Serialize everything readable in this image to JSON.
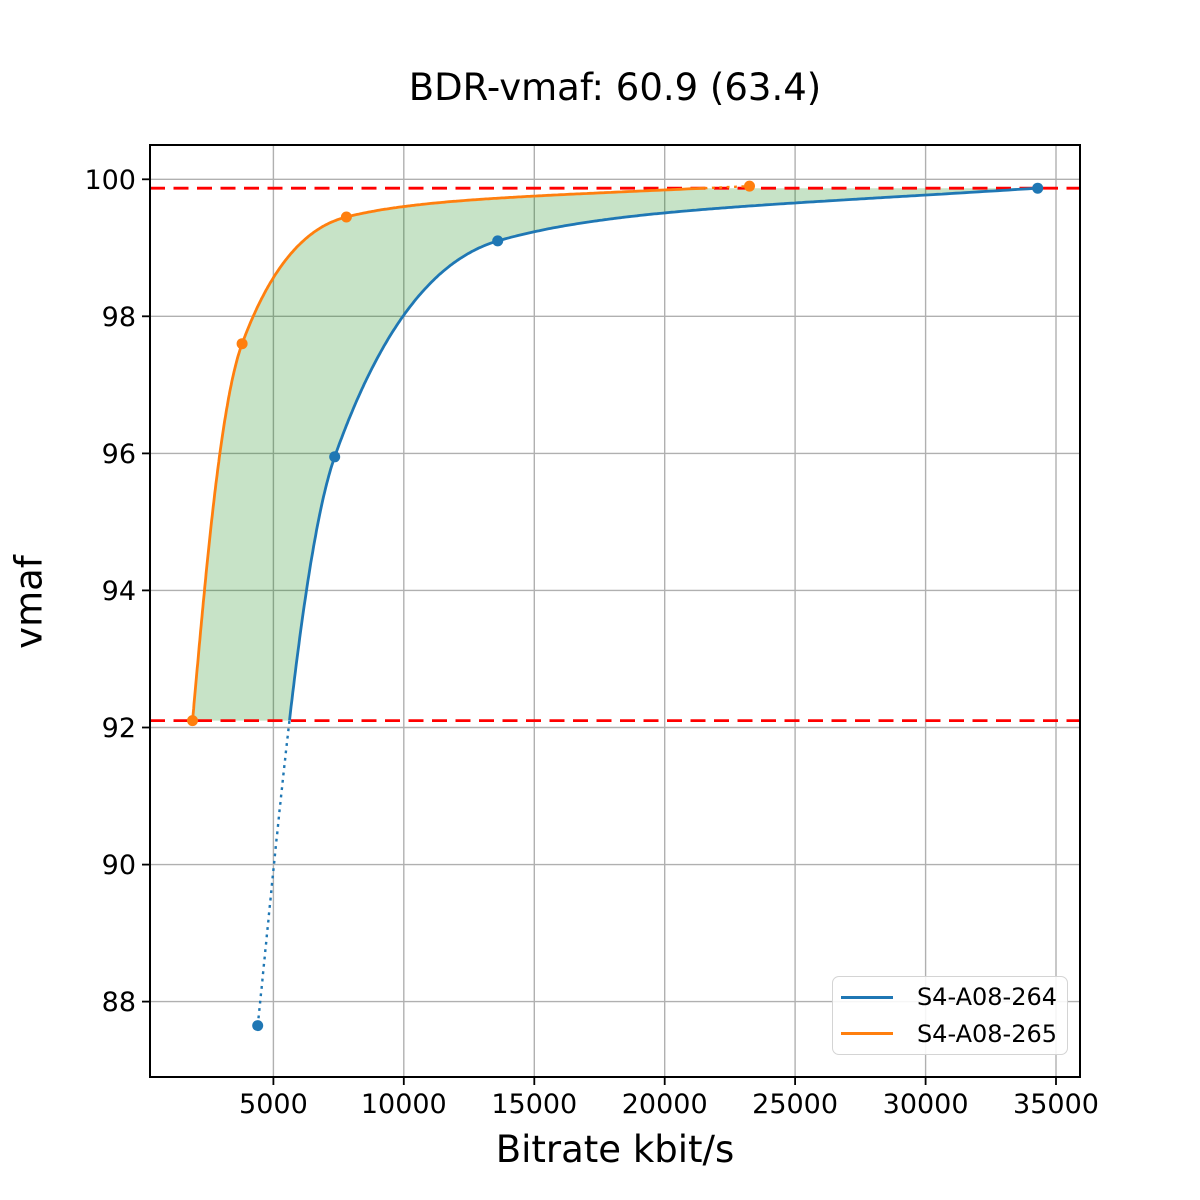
{
  "chart_data": {
    "type": "line",
    "title": "BDR-vmaf: 60.9 (63.4)",
    "xlabel": "Bitrate kbit/s",
    "ylabel": "vmaf",
    "xlim": [
      270,
      35920
    ],
    "ylim": [
      86.9,
      100.5
    ],
    "x_ticks": [
      5000,
      10000,
      15000,
      20000,
      25000,
      30000,
      35000
    ],
    "x_tick_labels": [
      "5000",
      "10000",
      "15000",
      "20000",
      "25000",
      "30000",
      "35000"
    ],
    "y_ticks": [
      88,
      90,
      92,
      94,
      96,
      98,
      100
    ],
    "y_tick_labels": [
      "88",
      "90",
      "92",
      "94",
      "96",
      "98",
      "100"
    ],
    "grid": true,
    "grid_color": "#b0b0b0",
    "legend_position": "lower right",
    "series": [
      {
        "name": "S4-A08-264",
        "color": "#1f77b4",
        "points": [
          [
            4400,
            87.65
          ],
          [
            7350,
            95.95
          ],
          [
            13600,
            99.1
          ],
          [
            34300,
            99.87
          ]
        ],
        "style_note": "dotted below lower bound, solid above"
      },
      {
        "name": "S4-A08-265",
        "color": "#ff7f0e",
        "points": [
          [
            1900,
            92.1
          ],
          [
            3800,
            97.6
          ],
          [
            7800,
            99.45
          ],
          [
            23250,
            99.9
          ]
        ],
        "style_note": "solid below upper bound, dotted above"
      }
    ],
    "bounds": {
      "upper_vmaf": 99.87,
      "lower_vmaf": 92.1,
      "line_color": "#ff0000",
      "line_style": "dashed"
    },
    "shaded_region": {
      "color": "#008000",
      "opacity": 0.22,
      "between": [
        "S4-A08-265",
        "S4-A08-264"
      ],
      "clipped_to_bounds": true
    }
  }
}
